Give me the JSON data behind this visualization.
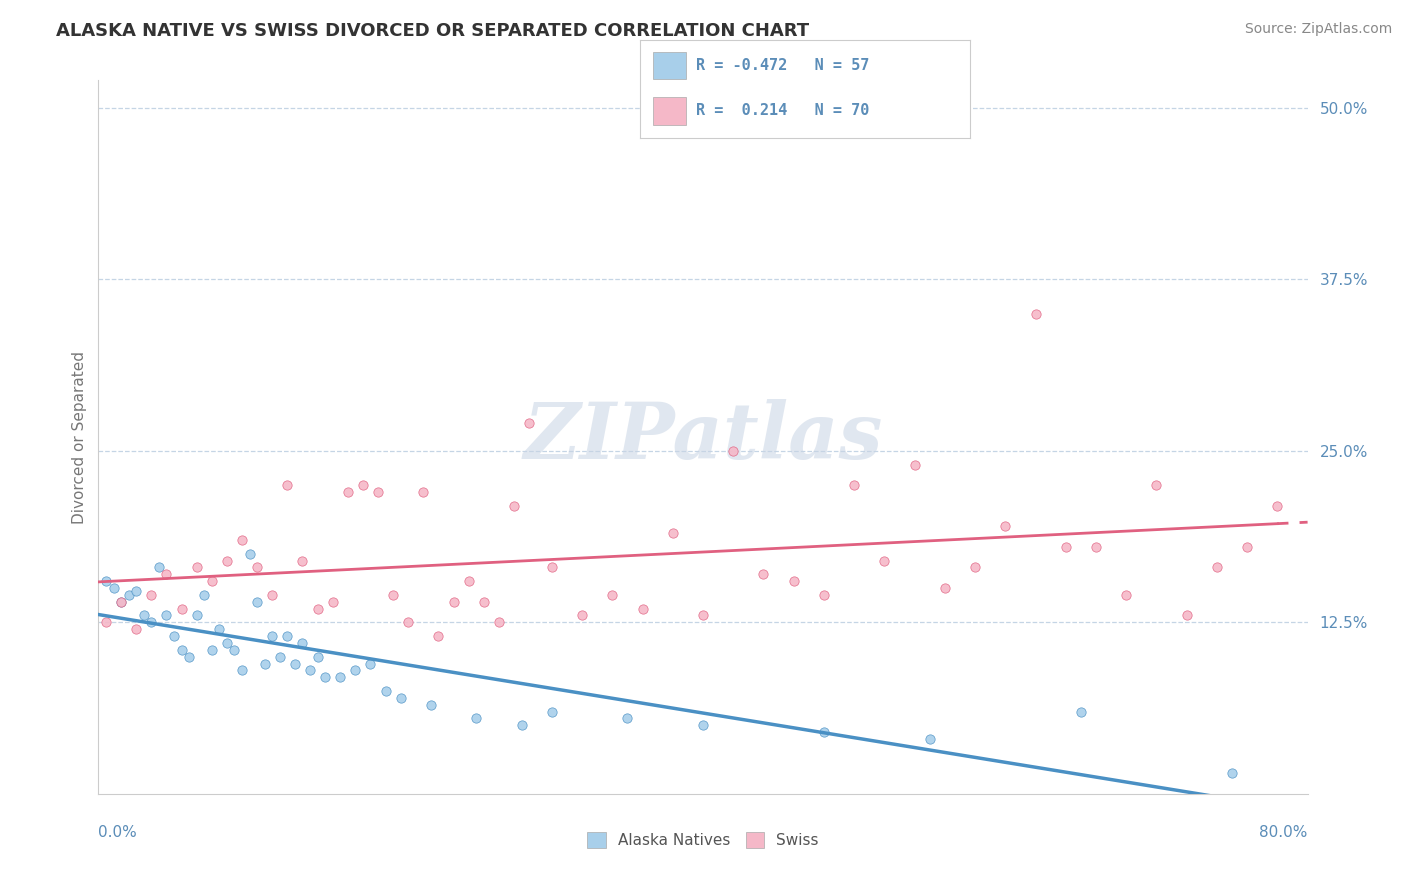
{
  "title": "ALASKA NATIVE VS SWISS DIVORCED OR SEPARATED CORRELATION CHART",
  "source_text": "Source: ZipAtlas.com",
  "ylabel": "Divorced or Separated",
  "color_alaska": "#A8CFEA",
  "color_swiss": "#F5B8C8",
  "color_alaska_line": "#4A90C4",
  "color_swiss_line": "#E06080",
  "background_color": "#FFFFFF",
  "watermark_text": "ZIPatlas",
  "watermark_color": "#C8D4E4",
  "alaska_x": [
    0.5,
    1.0,
    1.5,
    2.0,
    2.5,
    3.0,
    3.5,
    4.0,
    4.5,
    5.0,
    5.5,
    6.0,
    6.5,
    7.0,
    7.5,
    8.0,
    8.5,
    9.0,
    9.5,
    10.0,
    10.5,
    11.0,
    11.5,
    12.0,
    12.5,
    13.0,
    13.5,
    14.0,
    14.5,
    15.0,
    16.0,
    17.0,
    18.0,
    19.0,
    20.0,
    22.0,
    25.0,
    28.0,
    30.0,
    35.0,
    40.0,
    48.0,
    55.0,
    65.0,
    75.0
  ],
  "alaska_y": [
    15.5,
    15.0,
    14.0,
    14.5,
    14.8,
    13.0,
    12.5,
    16.5,
    13.0,
    11.5,
    10.5,
    10.0,
    13.0,
    14.5,
    10.5,
    12.0,
    11.0,
    10.5,
    9.0,
    17.5,
    14.0,
    9.5,
    11.5,
    10.0,
    11.5,
    9.5,
    11.0,
    9.0,
    10.0,
    8.5,
    8.5,
    9.0,
    9.5,
    7.5,
    7.0,
    6.5,
    5.5,
    5.0,
    6.0,
    5.5,
    5.0,
    4.5,
    4.0,
    6.0,
    1.5
  ],
  "swiss_x": [
    0.5,
    1.5,
    2.5,
    3.5,
    4.5,
    5.5,
    6.5,
    7.5,
    8.5,
    9.5,
    10.5,
    11.5,
    12.5,
    13.5,
    14.5,
    15.5,
    16.5,
    17.5,
    18.5,
    19.5,
    20.5,
    21.5,
    22.5,
    23.5,
    24.5,
    25.5,
    26.5,
    27.5,
    28.5,
    30.0,
    32.0,
    34.0,
    36.0,
    38.0,
    40.0,
    42.0,
    44.0,
    46.0,
    48.0,
    50.0,
    52.0,
    54.0,
    56.0,
    58.0,
    60.0,
    62.0,
    64.0,
    66.0,
    68.0,
    70.0,
    72.0,
    74.0,
    76.0,
    78.0
  ],
  "swiss_y": [
    12.5,
    14.0,
    12.0,
    14.5,
    16.0,
    13.5,
    16.5,
    15.5,
    17.0,
    18.5,
    16.5,
    14.5,
    22.5,
    17.0,
    13.5,
    14.0,
    22.0,
    22.5,
    22.0,
    14.5,
    12.5,
    22.0,
    11.5,
    14.0,
    15.5,
    14.0,
    12.5,
    21.0,
    27.0,
    16.5,
    13.0,
    14.5,
    13.5,
    19.0,
    13.0,
    25.0,
    16.0,
    15.5,
    14.5,
    22.5,
    17.0,
    24.0,
    15.0,
    16.5,
    19.5,
    35.0,
    18.0,
    18.0,
    14.5,
    22.5,
    13.0,
    16.5,
    18.0,
    21.0
  ],
  "xmin": 0.0,
  "xmax": 80.0,
  "ymin": 0.0,
  "ymax": 52.0,
  "ytick_values": [
    0.0,
    12.5,
    25.0,
    37.5,
    50.0
  ],
  "ytick_labels": [
    "",
    "12.5%",
    "25.0%",
    "37.5%",
    "50.0%"
  ],
  "r_alaska": -0.472,
  "n_alaska": 57,
  "r_swiss": 0.214,
  "n_swiss": 70
}
